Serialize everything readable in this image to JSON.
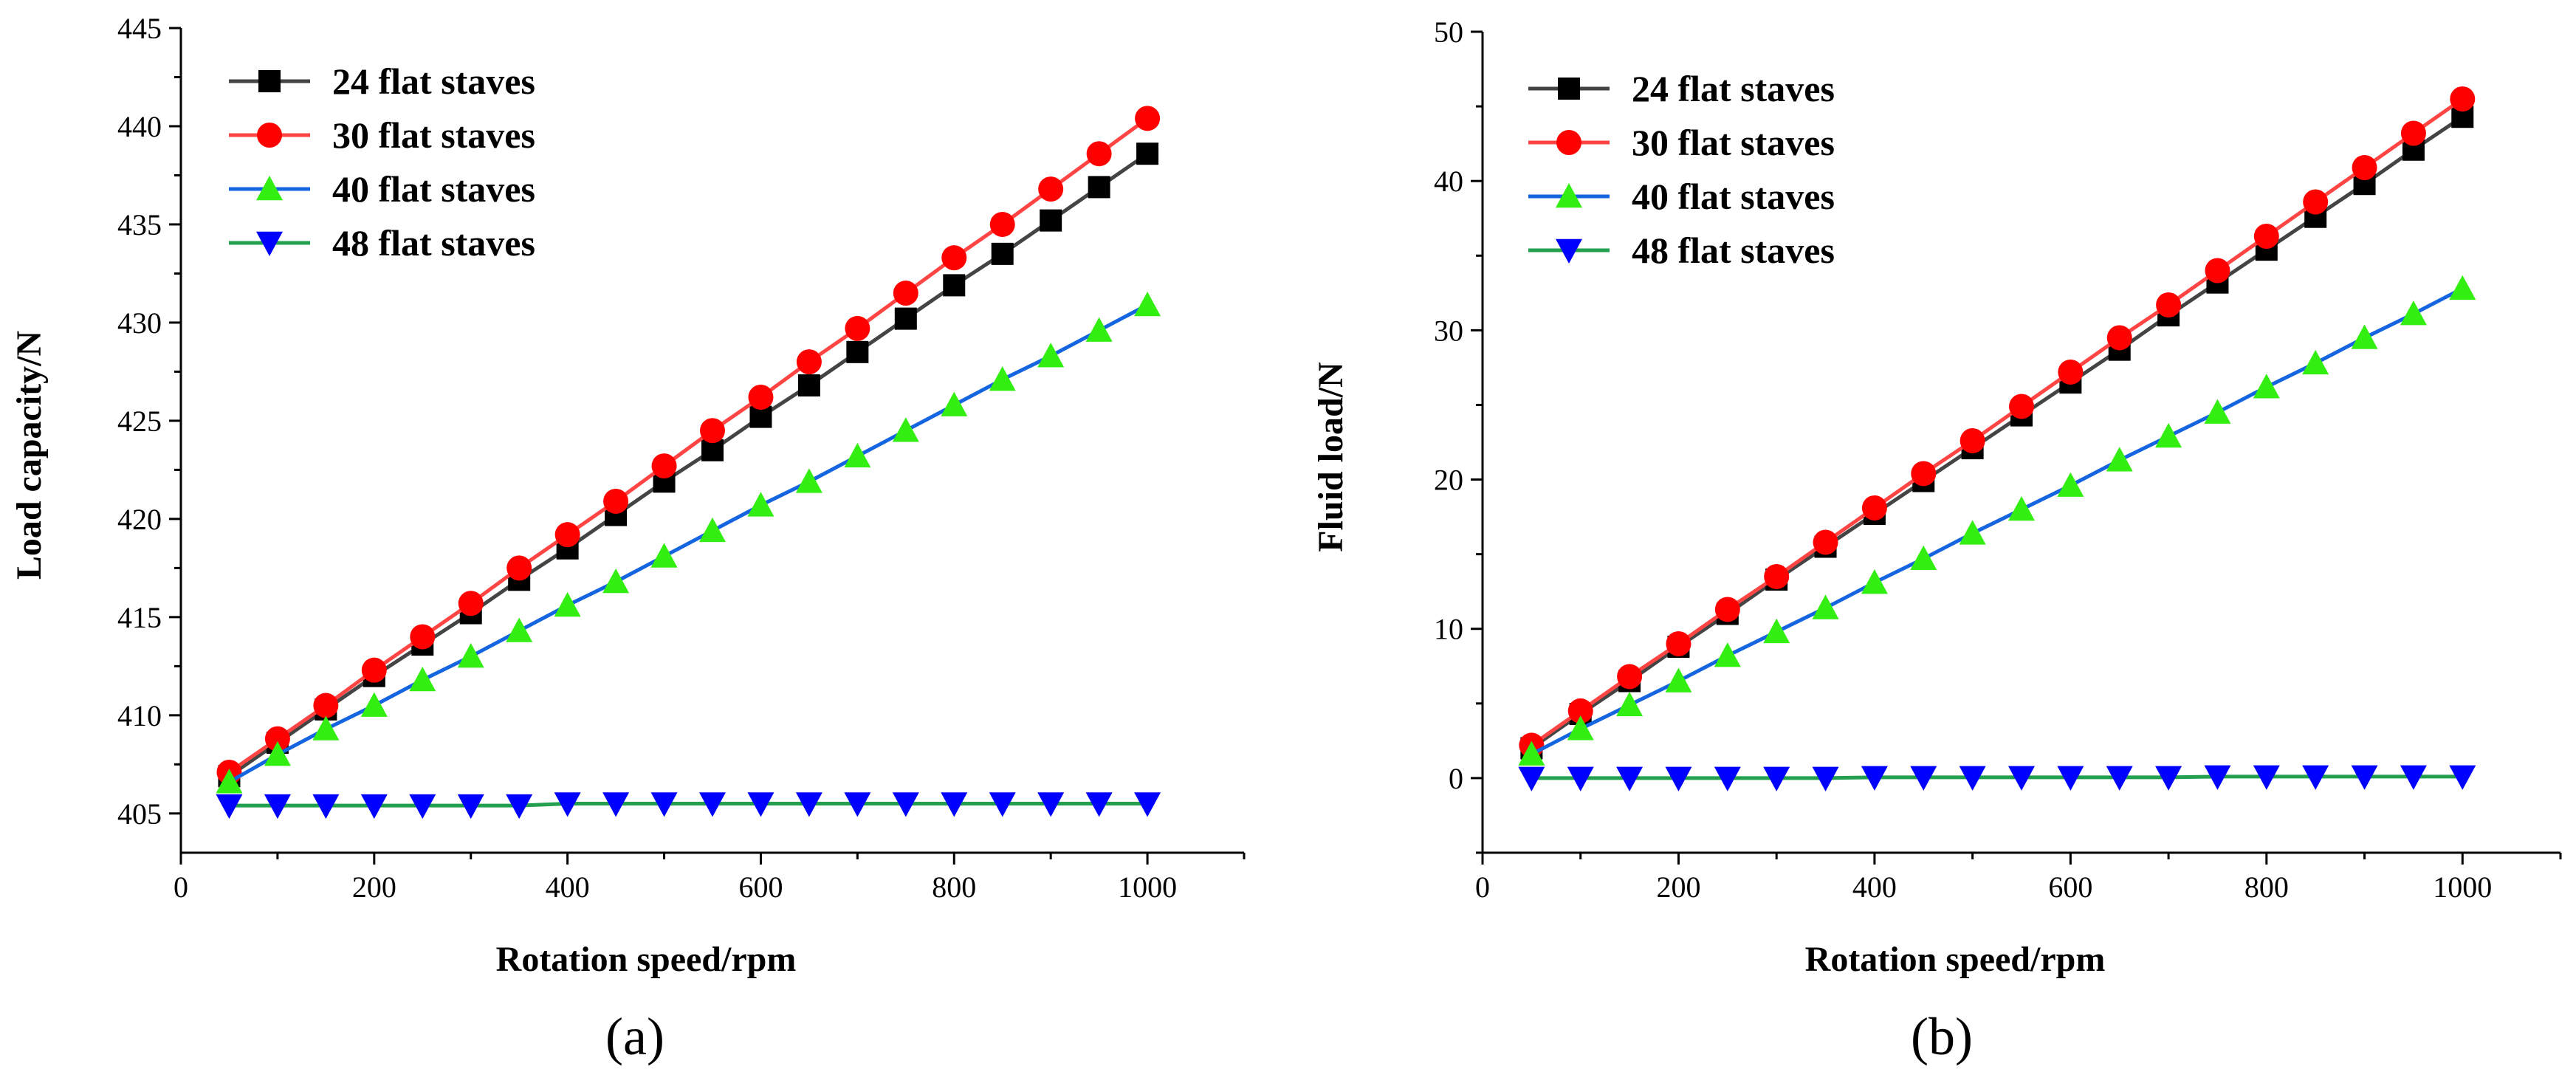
{
  "chart_data": [
    {
      "type": "line",
      "panel_label": "(a)",
      "title": "",
      "xlabel": "Rotation speed/rpm",
      "ylabel": "Load capacity/N",
      "xlim": [
        0,
        1100
      ],
      "ylim": [
        403,
        445
      ],
      "xticks": [
        0,
        200,
        400,
        600,
        800,
        1000
      ],
      "yticks": [
        405,
        410,
        415,
        420,
        425,
        430,
        435,
        440,
        445
      ],
      "grid": false,
      "legend": "top-left",
      "x": [
        50,
        100,
        150,
        200,
        250,
        300,
        350,
        400,
        450,
        500,
        550,
        600,
        650,
        700,
        750,
        800,
        850,
        900,
        950,
        1000
      ],
      "series": [
        {
          "name": "24 flat staves",
          "marker": "square",
          "line_color": "#444444",
          "marker_color": "#000000",
          "values": [
            406.9,
            408.6,
            410.3,
            412.0,
            413.6,
            415.2,
            416.9,
            418.5,
            420.2,
            421.9,
            423.5,
            425.2,
            426.8,
            428.5,
            430.2,
            431.9,
            433.5,
            435.2,
            436.9,
            438.6
          ]
        },
        {
          "name": "30 flat staves",
          "marker": "circle",
          "line_color": "#ff4444",
          "marker_color": "#ff0000",
          "values": [
            407.1,
            408.8,
            410.5,
            412.3,
            414.0,
            415.7,
            417.5,
            419.2,
            420.9,
            422.7,
            424.5,
            426.2,
            428.0,
            429.7,
            431.5,
            433.3,
            435.0,
            436.8,
            438.6,
            440.4
          ]
        },
        {
          "name": "40 flat staves",
          "marker": "triangle-up",
          "line_color": "#1565e0",
          "marker_color": "#33ee11",
          "values": [
            406.6,
            408.0,
            409.3,
            410.5,
            411.8,
            413.0,
            414.3,
            415.6,
            416.8,
            418.1,
            419.4,
            420.7,
            421.9,
            423.2,
            424.5,
            425.8,
            427.1,
            428.3,
            429.6,
            430.9
          ]
        },
        {
          "name": "48 flat staves",
          "marker": "triangle-down",
          "line_color": "#22a050",
          "marker_color": "#0000ff",
          "values": [
            405.4,
            405.4,
            405.4,
            405.4,
            405.4,
            405.4,
            405.4,
            405.5,
            405.5,
            405.5,
            405.5,
            405.5,
            405.5,
            405.5,
            405.5,
            405.5,
            405.5,
            405.5,
            405.5,
            405.5
          ]
        }
      ]
    },
    {
      "type": "line",
      "panel_label": "(b)",
      "title": "",
      "xlabel": "Rotation speed/rpm",
      "ylabel": "Fluid load/N",
      "xlim": [
        0,
        1100
      ],
      "ylim": [
        -5,
        50
      ],
      "xticks": [
        0,
        200,
        400,
        600,
        800,
        1000
      ],
      "yticks": [
        0,
        10,
        20,
        30,
        40,
        50
      ],
      "grid": false,
      "legend": "top-left",
      "x": [
        50,
        100,
        150,
        200,
        250,
        300,
        350,
        400,
        450,
        500,
        550,
        600,
        650,
        700,
        750,
        800,
        850,
        900,
        950,
        1000
      ],
      "series": [
        {
          "name": "24 flat staves",
          "marker": "square",
          "line_color": "#444444",
          "marker_color": "#000000",
          "values": [
            2.0,
            4.3,
            6.5,
            8.8,
            11.0,
            13.3,
            15.5,
            17.7,
            19.9,
            22.1,
            24.3,
            26.5,
            28.7,
            31.0,
            33.2,
            35.4,
            37.6,
            39.8,
            42.1,
            44.3
          ]
        },
        {
          "name": "30 flat staves",
          "marker": "circle",
          "line_color": "#ff4444",
          "marker_color": "#ff0000",
          "values": [
            2.2,
            4.5,
            6.8,
            9.0,
            11.3,
            13.5,
            15.8,
            18.1,
            20.4,
            22.6,
            24.9,
            27.2,
            29.5,
            31.7,
            34.0,
            36.3,
            38.6,
            40.9,
            43.2,
            45.5
          ]
        },
        {
          "name": "40 flat staves",
          "marker": "triangle-up",
          "line_color": "#1565e0",
          "marker_color": "#33ee11",
          "values": [
            1.6,
            3.3,
            4.9,
            6.5,
            8.2,
            9.8,
            11.4,
            13.1,
            14.7,
            16.4,
            18.0,
            19.6,
            21.3,
            22.9,
            24.5,
            26.2,
            27.8,
            29.5,
            31.1,
            32.8
          ]
        },
        {
          "name": "48 flat staves",
          "marker": "triangle-down",
          "line_color": "#22a050",
          "marker_color": "#0000ff",
          "values": [
            0.0,
            0.0,
            0.0,
            0.0,
            0.0,
            0.0,
            0.0,
            0.05,
            0.05,
            0.05,
            0.05,
            0.05,
            0.05,
            0.05,
            0.1,
            0.1,
            0.1,
            0.1,
            0.1,
            0.1
          ]
        }
      ]
    }
  ]
}
